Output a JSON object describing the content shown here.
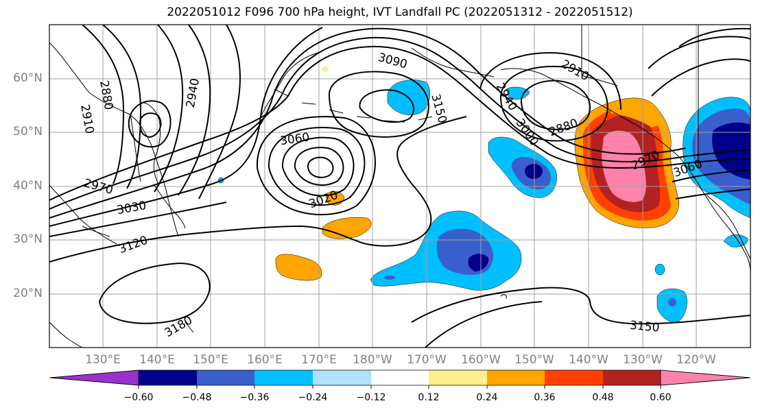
{
  "title": "2022051012 F096 700 hPa height, IVT Landfall PC (2022051312 - 2022051512)",
  "y_axis_labels": [
    "60°N",
    "50°N",
    "40°N",
    "30°N",
    "20°N"
  ],
  "x_axis_labels": [
    "130°E",
    "140°E",
    "150°E",
    "160°E",
    "170°E",
    "180°W",
    "170°W",
    "160°W",
    "150°W",
    "140°W",
    "130°W",
    "120°W"
  ],
  "contour_labels": [
    "2880",
    "2910",
    "2940",
    "2970",
    "3030",
    "3120",
    "3060",
    "3090",
    "3150",
    "3180",
    "3020",
    "2940",
    "3000",
    "2880",
    "2910",
    "2970",
    "3060",
    "3150"
  ],
  "colorbar": {
    "tick_labels": [
      "−0.60",
      "−0.48",
      "−0.36",
      "−0.24",
      "−0.12",
      "0.12",
      "0.24",
      "0.36",
      "0.48",
      "0.60"
    ],
    "colors": [
      "#9932cc",
      "#00008b",
      "#3a5fcd",
      "#00bfff",
      "#b0e2ff",
      "#ffffff",
      "#ffee8c",
      "#ffa500",
      "#ff4000",
      "#b22222",
      "#ff82ab"
    ]
  }
}
